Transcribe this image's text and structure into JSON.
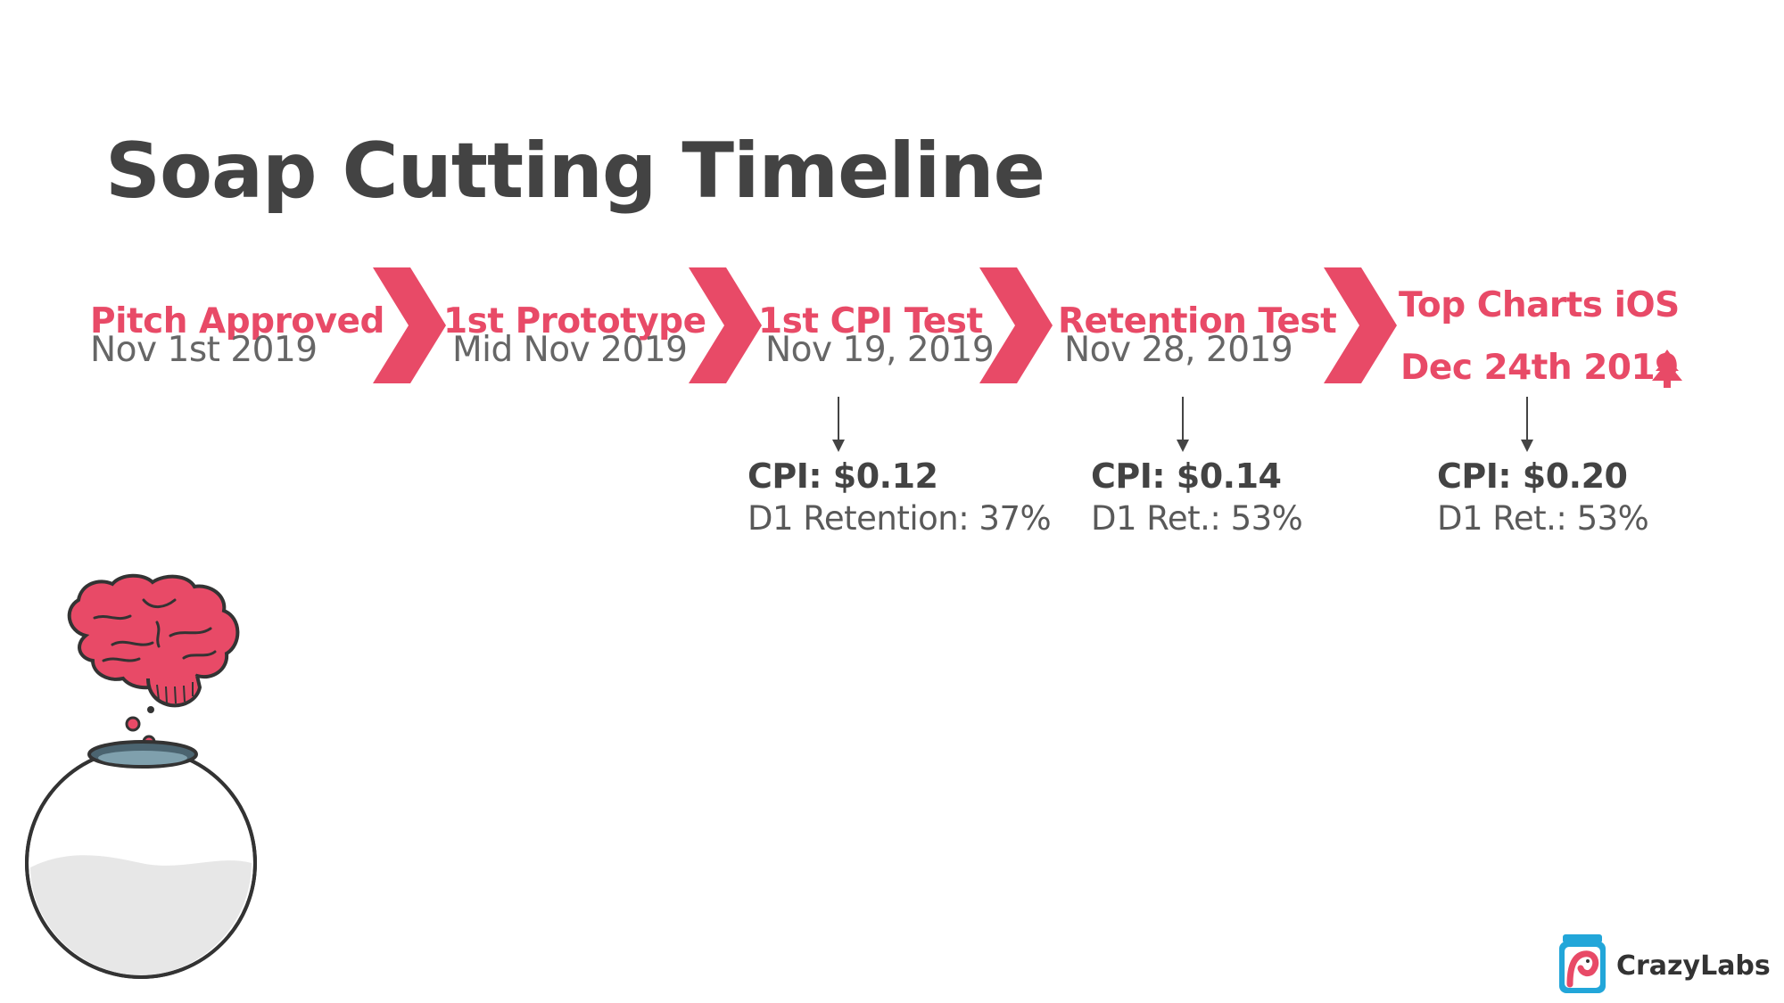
{
  "slide": {
    "title": "Soap Cutting Timeline"
  },
  "colors": {
    "accent": "#e84a67",
    "title": "#434343",
    "date": "#666666",
    "brand_blue": "#22a6d9"
  },
  "milestones": [
    {
      "label": "Pitch Approved",
      "date": "Nov 1st 2019"
    },
    {
      "label": "1st Prototype",
      "date": "Mid Nov 2019"
    },
    {
      "label": "1st CPI Test",
      "date": "Nov 19, 2019"
    },
    {
      "label": "Retention Test",
      "date": "Nov 28, 2019"
    },
    {
      "label": "Top Charts iOS",
      "date": "Dec 24th 2019"
    }
  ],
  "metrics": [
    {
      "cpi": "CPI: $0.12",
      "retention": "D1 Retention: 37%"
    },
    {
      "cpi": "CPI: $0.14",
      "retention": "D1 Ret.: 53%"
    },
    {
      "cpi": "CPI: $0.20",
      "retention": "D1 Ret.: 53%"
    }
  ],
  "icons": {
    "chevron": "chevron-right-icon",
    "tree": "christmas-tree-icon",
    "arrow": "arrow-down-icon",
    "brain": "brain-icon",
    "flask": "flask-icon",
    "logo": "crazylabs-logo-icon"
  },
  "brand": {
    "name": "CrazyLabs"
  }
}
